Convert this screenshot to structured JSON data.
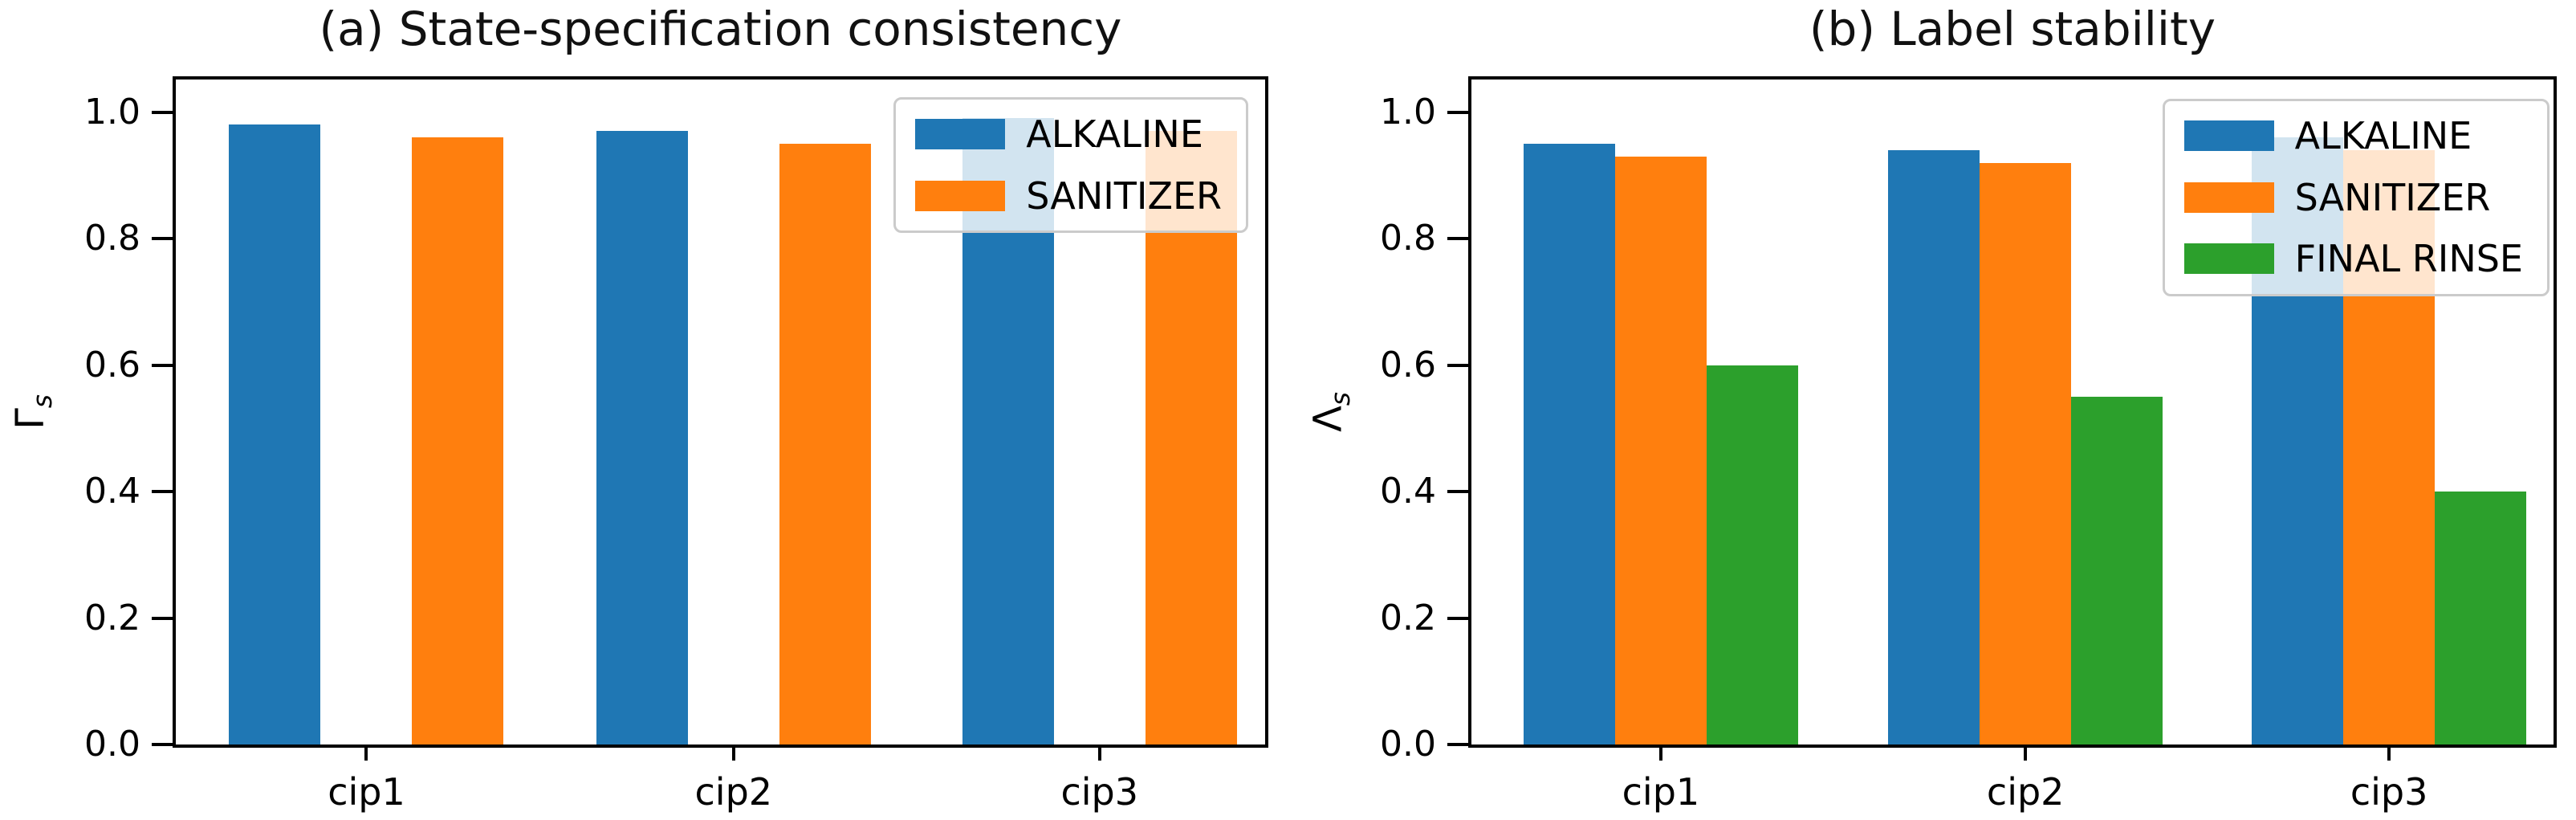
{
  "figure": {
    "background": "#ffffff",
    "axis_color": "#000000",
    "legend_border_color": "#cbcbcb"
  },
  "chart_data": [
    {
      "type": "bar",
      "title": "(a) State-specification consistency",
      "ylabel": "Γ",
      "ylabel_sub": "s",
      "xlabel": "",
      "categories": [
        "cip1",
        "cip2",
        "cip3"
      ],
      "series": [
        {
          "name": "ALKALINE",
          "color": "#1f77b4",
          "values": [
            0.98,
            0.97,
            0.99
          ]
        },
        {
          "name": "SANITIZER",
          "color": "#ff7f0e",
          "values": [
            0.96,
            0.95,
            0.97
          ]
        }
      ],
      "yticks": [
        "0.0",
        "0.2",
        "0.4",
        "0.6",
        "0.8",
        "1.0"
      ],
      "ylim": [
        0.0,
        1.05
      ],
      "grid": false,
      "legend_position": "upper right",
      "bar_layout": "spaced-pair"
    },
    {
      "type": "bar",
      "title": "(b) Label stability",
      "ylabel": "Λ",
      "ylabel_sub": "s",
      "xlabel": "",
      "categories": [
        "cip1",
        "cip2",
        "cip3"
      ],
      "series": [
        {
          "name": "ALKALINE",
          "color": "#1f77b4",
          "values": [
            0.95,
            0.94,
            0.96
          ]
        },
        {
          "name": "SANITIZER",
          "color": "#ff7f0e",
          "values": [
            0.93,
            0.92,
            0.94
          ]
        },
        {
          "name": "FINAL RINSE",
          "color": "#2ca02c",
          "values": [
            0.6,
            0.55,
            0.4
          ]
        }
      ],
      "yticks": [
        "0.0",
        "0.2",
        "0.4",
        "0.6",
        "0.8",
        "1.0"
      ],
      "ylim": [
        0.0,
        1.05
      ],
      "grid": false,
      "legend_position": "upper right",
      "bar_layout": "adjacent-triple"
    }
  ]
}
